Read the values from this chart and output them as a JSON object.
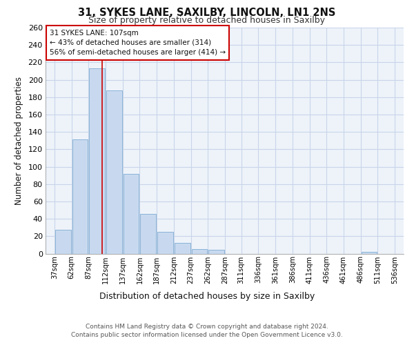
{
  "title_line1": "31, SYKES LANE, SAXILBY, LINCOLN, LN1 2NS",
  "title_line2": "Size of property relative to detached houses in Saxilby",
  "xlabel": "Distribution of detached houses by size in Saxilby",
  "ylabel": "Number of detached properties",
  "bar_centers": [
    49.5,
    74.5,
    99.5,
    124.5,
    149.5,
    174.5,
    199.5,
    224.5,
    249.5,
    274.5,
    299,
    323.5,
    348.5,
    373.5,
    398.5,
    423.5,
    448.5,
    473.5,
    498.5,
    523.5
  ],
  "bar_widths": [
    23,
    23,
    23,
    23,
    23,
    23,
    23,
    23,
    23,
    23,
    22,
    23,
    23,
    23,
    23,
    23,
    23,
    23,
    23,
    23
  ],
  "bar_heights": [
    27,
    131,
    213,
    188,
    92,
    46,
    25,
    12,
    5,
    4,
    0,
    0,
    0,
    0,
    0,
    0,
    0,
    0,
    2,
    0
  ],
  "bar_color": "#c8d9ef",
  "bar_edge_color": "#8ab4d8",
  "tick_labels": [
    "37sqm",
    "62sqm",
    "87sqm",
    "112sqm",
    "137sqm",
    "162sqm",
    "187sqm",
    "212sqm",
    "237sqm",
    "262sqm",
    "287sqm",
    "311sqm",
    "336sqm",
    "361sqm",
    "386sqm",
    "411sqm",
    "436sqm",
    "461sqm",
    "486sqm",
    "511sqm",
    "536sqm"
  ],
  "tick_positions": [
    37,
    62,
    87,
    112,
    137,
    162,
    187,
    212,
    237,
    262,
    287,
    311,
    336,
    361,
    386,
    411,
    436,
    461,
    486,
    511,
    536
  ],
  "ylim": [
    0,
    260
  ],
  "xlim": [
    24,
    549
  ],
  "property_line_x": 107,
  "property_line_color": "#cc0000",
  "annotation_line1": "31 SYKES LANE: 107sqm",
  "annotation_line2": "← 43% of detached houses are smaller (314)",
  "annotation_line3": "56% of semi-detached houses are larger (414) →",
  "background_color": "#ffffff",
  "plot_bg_color": "#eef3fa",
  "grid_color": "#c8d4e8",
  "footnote": "Contains HM Land Registry data © Crown copyright and database right 2024.\nContains public sector information licensed under the Open Government Licence v3.0.",
  "yticks": [
    0,
    20,
    40,
    60,
    80,
    100,
    120,
    140,
    160,
    180,
    200,
    220,
    240,
    260
  ]
}
